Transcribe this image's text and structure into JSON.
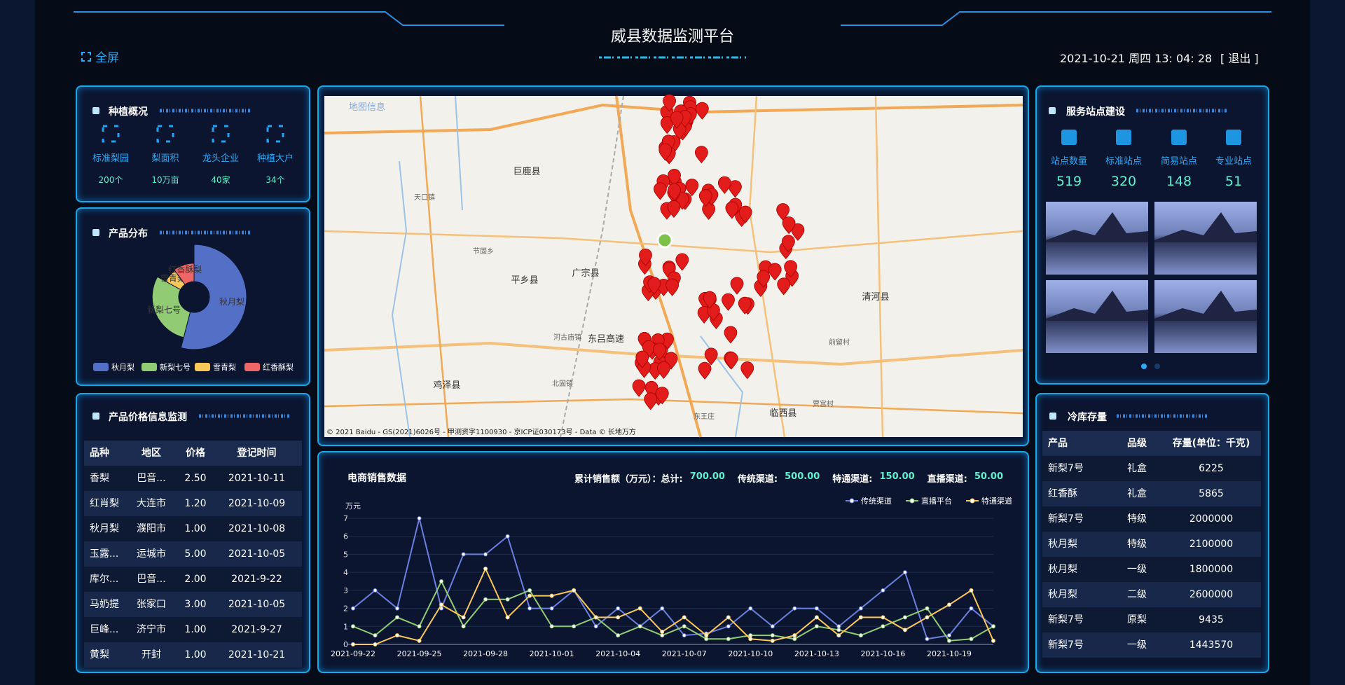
{
  "header": {
    "title": "威县数据监测平台",
    "fullscreen": "全屏",
    "datetime": "2021-10-21 周四 13: 04: 28",
    "logout": "[ 退出 ]"
  },
  "planting": {
    "title": "种植概况",
    "items": [
      {
        "label": "标准梨园",
        "value": "200个"
      },
      {
        "label": "梨面积",
        "value": "10万亩"
      },
      {
        "label": "龙头企业",
        "value": "40家"
      },
      {
        "label": "种植大户",
        "value": "34个"
      }
    ]
  },
  "product_distribution": {
    "title": "产品分布"
  },
  "price_table": {
    "title": "产品价格信息监测",
    "columns": [
      "品种",
      "地区",
      "价格",
      "登记时间"
    ],
    "rows": [
      [
        "香梨",
        "巴音...",
        "2.50",
        "2021-10-11"
      ],
      [
        "红肖梨",
        "大连市",
        "1.20",
        "2021-10-09"
      ],
      [
        "秋月梨",
        "濮阳市",
        "1.00",
        "2021-10-08"
      ],
      [
        "玉露...",
        "运城市",
        "5.00",
        "2021-10-05"
      ],
      [
        "库尔...",
        "巴音...",
        "2.00",
        "2021-9-22"
      ],
      [
        "马奶提",
        "张家口",
        "3.00",
        "2021-10-05"
      ],
      [
        "巨峰...",
        "济宁市",
        "1.00",
        "2021-9-27"
      ],
      [
        "黄梨",
        "开封",
        "1.00",
        "2021-10-21"
      ]
    ]
  },
  "map": {
    "title": "地图信息",
    "labels": [
      "巨鹿县",
      "平乡县",
      "广宗县",
      "清河县",
      "临西县",
      "鸡泽县",
      "东吕高速",
      "天口镇",
      "节固乡",
      "河古庙镇",
      "北固镇",
      "东王庄",
      "贾宫村",
      "前留村"
    ],
    "copyright": "© 2021 Baidu - GS(2021)6026号 - 甲测资字1100930 - 京ICP证030173号 - Data © 长地万方"
  },
  "sales": {
    "title": "电商销售数据",
    "summary": [
      {
        "label": "累计销售额（万元）：总计:",
        "value": "700.00"
      },
      {
        "label": "传统渠道:",
        "value": "500.00"
      },
      {
        "label": "特通渠道:",
        "value": "150.00"
      },
      {
        "label": "直播渠道:",
        "value": "50.00"
      }
    ]
  },
  "stations": {
    "title": "服务站点建设",
    "items": [
      {
        "label": "站点数量",
        "value": 519
      },
      {
        "label": "标准站点",
        "value": 320
      },
      {
        "label": "简易站点",
        "value": 148
      },
      {
        "label": "专业站点",
        "value": 51
      }
    ]
  },
  "cold_storage": {
    "title": "冷库存量",
    "columns": [
      "产品",
      "品级",
      "存量(单位：千克)"
    ],
    "rows": [
      [
        "新梨7号",
        "礼盒",
        6225
      ],
      [
        "红香酥",
        "礼盒",
        5865
      ],
      [
        "新梨7号",
        "特级",
        2000000
      ],
      [
        "秋月梨",
        "特级",
        2100000
      ],
      [
        "秋月梨",
        "一级",
        1800000
      ],
      [
        "秋月梨",
        "二级",
        2600000
      ],
      [
        "新梨7号",
        "原梨",
        9435
      ],
      [
        "新梨7号",
        "一级",
        1443570
      ]
    ]
  },
  "chart_data": [
    {
      "type": "pie",
      "categories": [
        "秋月梨",
        "新梨七号",
        "雪青梨",
        "红香酥梨"
      ],
      "values": [
        54,
        29,
        7,
        10
      ],
      "colors": [
        "#5470c6",
        "#91cc75",
        "#fac858",
        "#ee6666"
      ]
    },
    {
      "type": "line",
      "y_label": "万元",
      "categories": [
        "2021-09-22",
        null,
        null,
        "2021-09-25",
        null,
        null,
        "2021-09-28",
        null,
        null,
        "2021-10-01",
        null,
        null,
        "2021-10-04",
        null,
        null,
        "2021-10-07",
        null,
        null,
        "2021-10-10",
        null,
        null,
        "2021-10-13",
        null,
        null,
        "2021-10-16",
        null,
        null,
        "2021-10-19",
        null,
        null
      ],
      "ylim": [
        0,
        7
      ],
      "yticks": [
        0,
        1,
        2,
        3,
        4,
        5,
        6,
        7
      ],
      "series": [
        {
          "name": "传统渠道",
          "color": "#6b7fe0",
          "values": [
            2,
            3,
            2,
            7,
            2,
            5,
            5,
            6,
            2,
            2,
            3,
            1,
            2,
            1,
            2,
            0.5,
            0.6,
            1,
            2,
            1,
            2,
            2,
            1,
            2,
            3,
            4,
            0.3,
            0.5,
            2,
            1
          ]
        },
        {
          "name": "直播平台",
          "color": "#91cc75",
          "values": [
            1,
            0.5,
            1.5,
            1,
            3.5,
            1,
            2.5,
            2.5,
            3,
            1,
            1,
            1.5,
            0.5,
            1,
            0.5,
            1,
            0.3,
            0.3,
            0.5,
            0.5,
            0.3,
            1,
            0.8,
            0.5,
            1,
            1.5,
            2,
            0.2,
            0.3,
            1
          ]
        },
        {
          "name": "特通渠道",
          "color": "#fac858",
          "values": [
            0,
            0,
            0.5,
            0.2,
            2.2,
            1.5,
            4.2,
            1.5,
            2.7,
            2.7,
            3,
            1.5,
            1.5,
            2,
            0.7,
            1.5,
            0.5,
            1.5,
            0.3,
            0.2,
            0.5,
            1.5,
            0.5,
            1.5,
            1.5,
            0.8,
            1.5,
            2.2,
            3,
            0.2
          ]
        }
      ]
    }
  ]
}
